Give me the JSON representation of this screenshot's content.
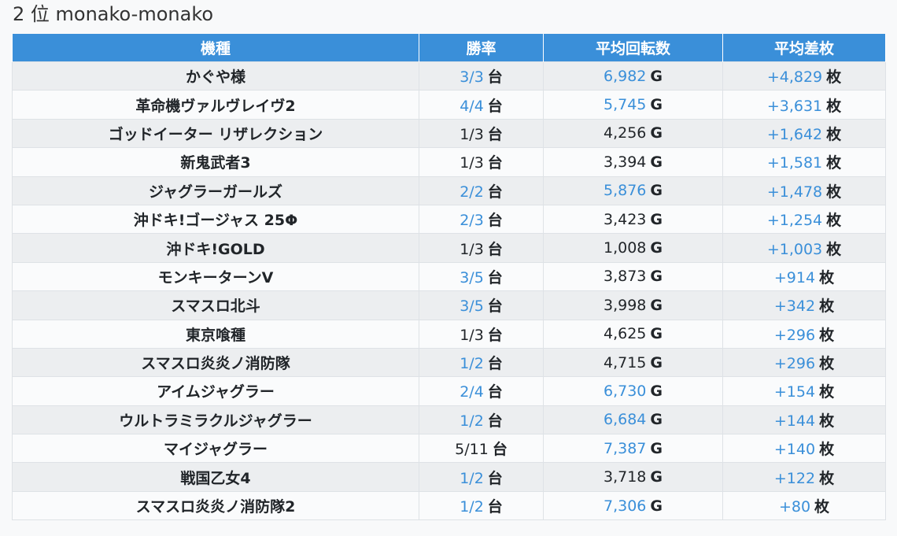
{
  "title": "2 位 monako-monako",
  "colors": {
    "header_bg": "#3a8fd9",
    "highlight": "#3a8fd9"
  },
  "headers": [
    "機種",
    "勝率",
    "平均回転数",
    "平均差枚"
  ],
  "units": {
    "rate": "台",
    "spins": "G",
    "diff": "枚"
  },
  "rows": [
    {
      "machine": "かぐや様",
      "rate": "3/3",
      "rate_hl": true,
      "spins": "6,982",
      "spins_hl": true,
      "diff": "+4,829"
    },
    {
      "machine": "革命機ヴァルヴレイヴ2",
      "rate": "4/4",
      "rate_hl": true,
      "spins": "5,745",
      "spins_hl": true,
      "diff": "+3,631"
    },
    {
      "machine": "ゴッドイーター リザレクション",
      "rate": "1/3",
      "rate_hl": false,
      "spins": "4,256",
      "spins_hl": false,
      "diff": "+1,642"
    },
    {
      "machine": "新鬼武者3",
      "rate": "1/3",
      "rate_hl": false,
      "spins": "3,394",
      "spins_hl": false,
      "diff": "+1,581"
    },
    {
      "machine": "ジャグラーガールズ",
      "rate": "2/2",
      "rate_hl": true,
      "spins": "5,876",
      "spins_hl": true,
      "diff": "+1,478"
    },
    {
      "machine": "沖ドキ!ゴージャス 25Φ",
      "rate": "2/3",
      "rate_hl": true,
      "spins": "3,423",
      "spins_hl": false,
      "diff": "+1,254"
    },
    {
      "machine": "沖ドキ!GOLD",
      "rate": "1/3",
      "rate_hl": false,
      "spins": "1,008",
      "spins_hl": false,
      "diff": "+1,003"
    },
    {
      "machine": "モンキーターンV",
      "rate": "3/5",
      "rate_hl": true,
      "spins": "3,873",
      "spins_hl": false,
      "diff": "+914"
    },
    {
      "machine": "スマスロ北斗",
      "rate": "3/5",
      "rate_hl": true,
      "spins": "3,998",
      "spins_hl": false,
      "diff": "+342"
    },
    {
      "machine": "東京喰種",
      "rate": "1/3",
      "rate_hl": false,
      "spins": "4,625",
      "spins_hl": false,
      "diff": "+296"
    },
    {
      "machine": "スマスロ炎炎ノ消防隊",
      "rate": "1/2",
      "rate_hl": true,
      "spins": "4,715",
      "spins_hl": false,
      "diff": "+296"
    },
    {
      "machine": "アイムジャグラー",
      "rate": "2/4",
      "rate_hl": true,
      "spins": "6,730",
      "spins_hl": true,
      "diff": "+154"
    },
    {
      "machine": "ウルトラミラクルジャグラー",
      "rate": "1/2",
      "rate_hl": true,
      "spins": "6,684",
      "spins_hl": true,
      "diff": "+144"
    },
    {
      "machine": "マイジャグラー",
      "rate": "5/11",
      "rate_hl": false,
      "spins": "7,387",
      "spins_hl": true,
      "diff": "+140"
    },
    {
      "machine": "戦国乙女4",
      "rate": "1/2",
      "rate_hl": true,
      "spins": "3,718",
      "spins_hl": false,
      "diff": "+122"
    },
    {
      "machine": "スマスロ炎炎ノ消防隊2",
      "rate": "1/2",
      "rate_hl": true,
      "spins": "7,306",
      "spins_hl": true,
      "diff": "+80"
    }
  ]
}
